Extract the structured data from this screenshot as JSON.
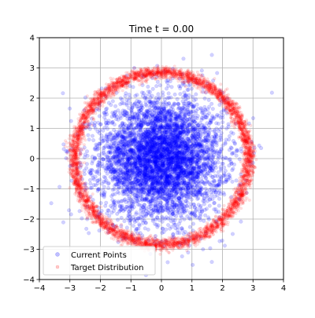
{
  "chart_data": {
    "type": "scatter",
    "title": "Time t = 0.00",
    "xlabel": "",
    "ylabel": "",
    "xlim": [
      -4,
      4
    ],
    "ylim": [
      -4,
      4
    ],
    "x_ticks": [
      -4,
      -3,
      -2,
      -1,
      0,
      1,
      2,
      3,
      4
    ],
    "y_ticks": [
      -4,
      -3,
      -2,
      -1,
      0,
      1,
      2,
      3,
      4
    ],
    "grid": true,
    "legend_position": "lower-left",
    "series": [
      {
        "name": "Current Points",
        "color": "#0000ff",
        "distribution": "2D Gaussian blob centered near the origin",
        "center": [
          0.0,
          0.0
        ],
        "std": [
          1.0,
          1.0
        ],
        "count": 5000
      },
      {
        "name": "Target Distribution",
        "color": "#ff0000",
        "distribution": "Thin ring (circle) of points",
        "center": [
          0.0,
          0.0
        ],
        "radius": 2.85,
        "thickness": 0.1,
        "count": 5000
      }
    ]
  }
}
